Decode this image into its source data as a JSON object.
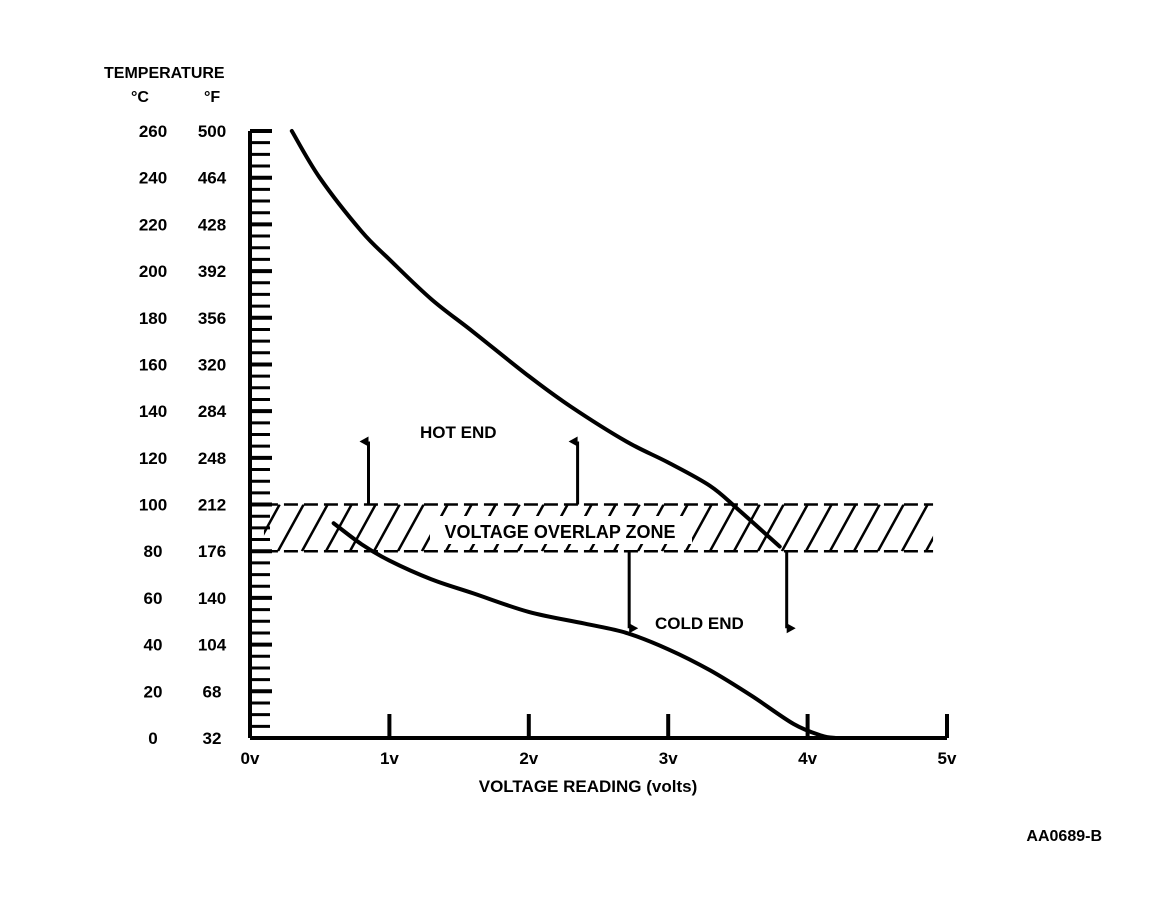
{
  "chart_data": {
    "type": "line",
    "title": "",
    "header": "TEMPERATURE",
    "y_unit_celsius": "°C",
    "y_unit_fahrenheit": "°F",
    "xlabel": "VOLTAGE READING (volts)",
    "xlim": [
      0,
      5
    ],
    "ylim": [
      0,
      260
    ],
    "x_ticks": [
      {
        "value": 0,
        "label": "0v"
      },
      {
        "value": 1,
        "label": "1v"
      },
      {
        "value": 2,
        "label": "2v"
      },
      {
        "value": 3,
        "label": "3v"
      },
      {
        "value": 4,
        "label": "4v"
      },
      {
        "value": 5,
        "label": "5v"
      }
    ],
    "y_ticks": [
      {
        "value": 0,
        "celsius": "0",
        "fahrenheit": "32"
      },
      {
        "value": 20,
        "celsius": "20",
        "fahrenheit": "68"
      },
      {
        "value": 40,
        "celsius": "40",
        "fahrenheit": "104"
      },
      {
        "value": 60,
        "celsius": "60",
        "fahrenheit": "140"
      },
      {
        "value": 80,
        "celsius": "80",
        "fahrenheit": "176"
      },
      {
        "value": 100,
        "celsius": "100",
        "fahrenheit": "212"
      },
      {
        "value": 120,
        "celsius": "120",
        "fahrenheit": "248"
      },
      {
        "value": 140,
        "celsius": "140",
        "fahrenheit": "284"
      },
      {
        "value": 160,
        "celsius": "160",
        "fahrenheit": "320"
      },
      {
        "value": 180,
        "celsius": "180",
        "fahrenheit": "356"
      },
      {
        "value": 200,
        "celsius": "200",
        "fahrenheit": "392"
      },
      {
        "value": 220,
        "celsius": "220",
        "fahrenheit": "428"
      },
      {
        "value": 240,
        "celsius": "240",
        "fahrenheit": "464"
      },
      {
        "value": 260,
        "celsius": "260",
        "fahrenheit": "500"
      }
    ],
    "series": [
      {
        "key": "hot",
        "x": [
          0.3,
          0.5,
          0.8,
          1.0,
          1.3,
          1.6,
          2.0,
          2.3,
          2.7,
          3.0,
          3.3,
          3.5,
          3.8
        ],
        "y": [
          260,
          240,
          217,
          205,
          188,
          174,
          155,
          142,
          127,
          118,
          108,
          98,
          82
        ]
      },
      {
        "key": "cold",
        "x": [
          0.6,
          0.8,
          1.0,
          1.3,
          1.6,
          2.0,
          2.4,
          2.7,
          3.0,
          3.3,
          3.6,
          3.9,
          4.1,
          4.2
        ],
        "y": [
          92,
          83,
          76,
          68,
          62,
          54,
          49,
          45,
          38,
          29,
          18,
          6,
          1,
          0
        ]
      }
    ],
    "zone": {
      "label": "VOLTAGE OVERLAP ZONE",
      "y_range": [
        80,
        100
      ],
      "x_range": [
        0.1,
        4.9
      ]
    },
    "annotations": [
      {
        "text": "HOT END"
      },
      {
        "text": "COLD END"
      }
    ],
    "arrows": [
      {
        "x": 0.85,
        "from": 100,
        "to": 127
      },
      {
        "x": 2.35,
        "from": 100,
        "to": 127
      },
      {
        "x": 2.72,
        "from": 80,
        "to": 47
      },
      {
        "x": 3.85,
        "from": 80,
        "to": 47
      }
    ]
  },
  "figure_id": "AA0689-B"
}
